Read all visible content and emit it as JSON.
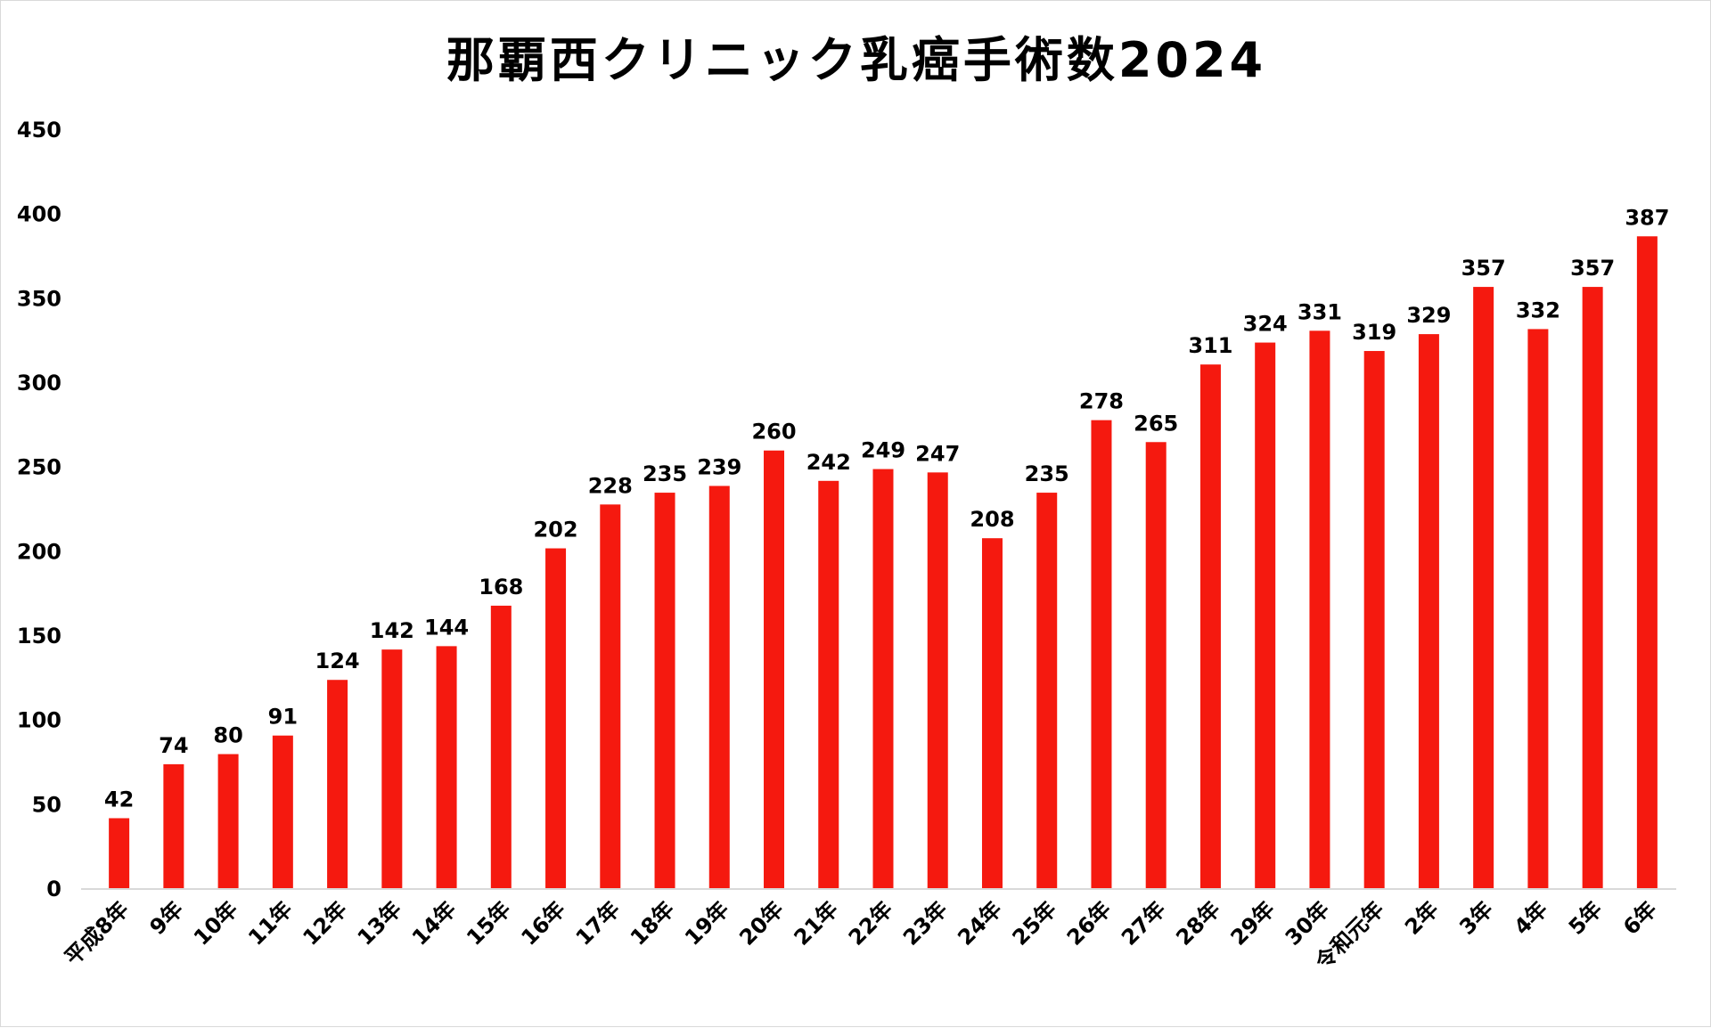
{
  "chart_data": {
    "type": "bar",
    "title": "那覇西クリニック乳癌手術数2024",
    "xlabel": "",
    "ylabel": "",
    "ylim": [
      0,
      450
    ],
    "yticks": [
      0,
      50,
      100,
      150,
      200,
      250,
      300,
      350,
      400,
      450
    ],
    "grid": false,
    "legend": "none",
    "bar_color": "#f5190f",
    "categories": [
      "平成8年",
      "9年",
      "10年",
      "11年",
      "12年",
      "13年",
      "14年",
      "15年",
      "16年",
      "17年",
      "18年",
      "19年",
      "20年",
      "21年",
      "22年",
      "23年",
      "24年",
      "25年",
      "26年",
      "27年",
      "28年",
      "29年",
      "30年",
      "令和元年",
      "2年",
      "3年",
      "4年",
      "5年",
      "6年"
    ],
    "values": [
      42,
      74,
      80,
      91,
      124,
      142,
      144,
      168,
      202,
      228,
      235,
      239,
      260,
      242,
      249,
      247,
      208,
      235,
      278,
      265,
      311,
      324,
      331,
      319,
      329,
      357,
      332,
      357,
      387
    ]
  }
}
